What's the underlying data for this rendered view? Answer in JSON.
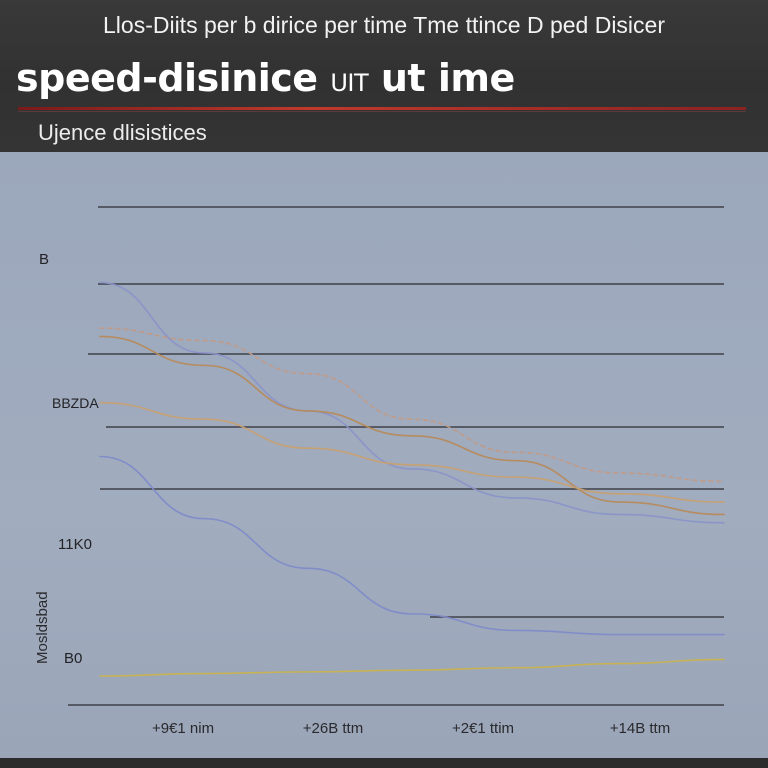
{
  "header": {
    "top_line": "Llos-Diits per b dirice per time Tme ttince D ped Disicer",
    "title_main": "speed-disinice",
    "title_small": "UIT",
    "title_tail": "ut ime",
    "subtitle": "Ujence dlisistices"
  },
  "chart_data": {
    "type": "line",
    "title": "speed-disinice UIT ut ime",
    "subtitle": "Ujence dlisistices",
    "xlabel": "",
    "ylabel": "",
    "x_tick_labels": [
      "+9€1 nim",
      "+26B ttm",
      "+2€1 ttim",
      "+14B ttm"
    ],
    "y_tick_labels": [
      "B",
      "BBZDA",
      "11K0",
      "B0"
    ],
    "y_axis_side_label": "Mosldsbad",
    "x": [
      0,
      1,
      2,
      3,
      4,
      5,
      6
    ],
    "ylim": [
      0,
      6
    ],
    "grid": true,
    "series": [
      {
        "values": [
          5.1,
          4.25,
          3.55,
          2.85,
          2.5,
          2.3,
          2.2
        ],
        "color": "#8a93c8",
        "dash": false
      },
      {
        "values": [
          4.55,
          4.4,
          4.0,
          3.45,
          3.05,
          2.8,
          2.7
        ],
        "color": "#c29a86",
        "dash": true
      },
      {
        "values": [
          4.45,
          4.1,
          3.55,
          3.25,
          2.95,
          2.45,
          2.3
        ],
        "color": "#b78a5a",
        "dash": false
      },
      {
        "values": [
          3.65,
          3.45,
          3.1,
          2.9,
          2.75,
          2.55,
          2.45
        ],
        "color": "#c8a070",
        "dash": false
      },
      {
        "values": [
          3.0,
          2.25,
          1.65,
          1.1,
          0.9,
          0.85,
          0.85
        ],
        "color": "#7f8bc8",
        "dash": false
      },
      {
        "values": [
          0.35,
          0.38,
          0.4,
          0.42,
          0.45,
          0.5,
          0.55
        ],
        "color": "#c9b24e",
        "dash": false
      }
    ]
  },
  "colors": {
    "header_bg": "#333334",
    "plot_bg": "#9ca8bc",
    "gridline": "#3c3f46",
    "accent_rule": "#c0392b"
  }
}
